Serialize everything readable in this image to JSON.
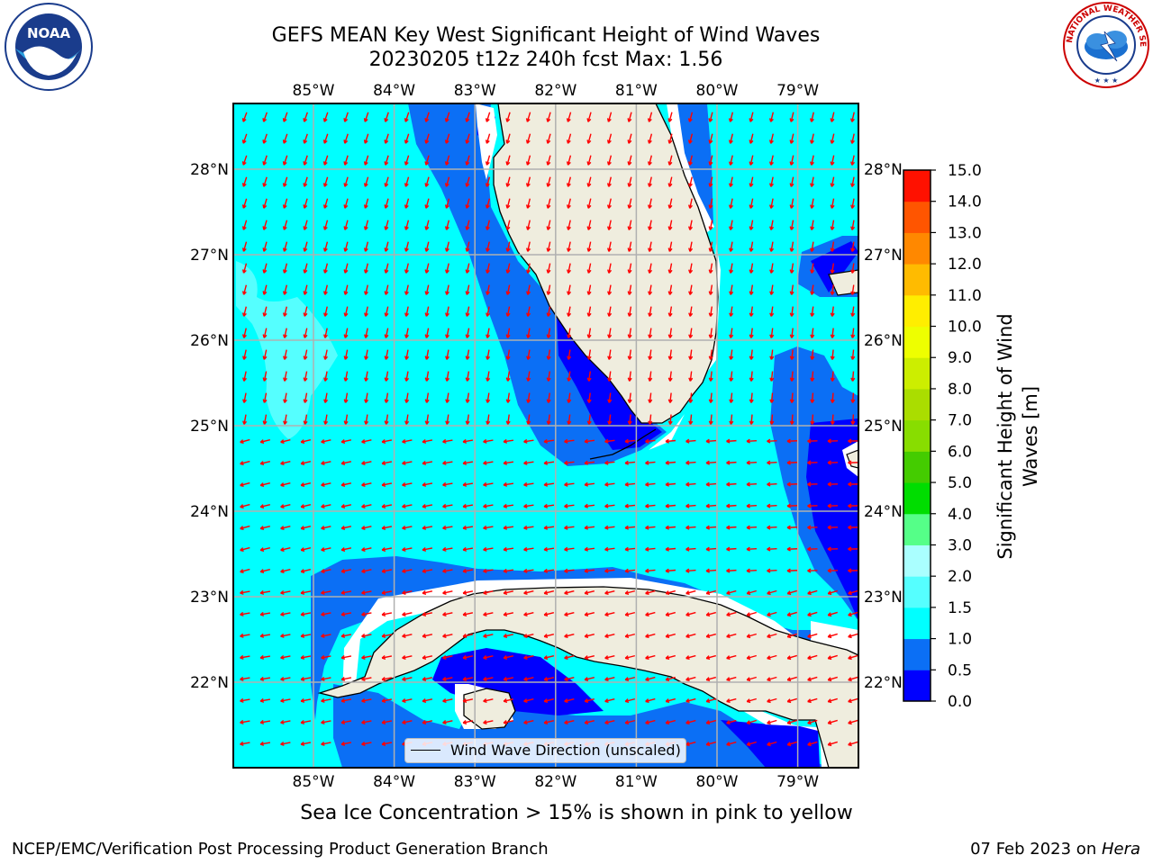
{
  "header": {
    "title_line1": "GEFS MEAN Key West Significant Height of Wind Waves",
    "title_line2": "20230205 t12z 240h fcst   Max: 1.56"
  },
  "logos": {
    "left": {
      "icon": "noaa-logo-icon",
      "text": "NOAA"
    },
    "right": {
      "icon": "nws-logo-icon",
      "text": "NATIONAL WEATHER SERVICE"
    }
  },
  "map": {
    "lon_ticks": [
      "85°W",
      "84°W",
      "83°W",
      "82°W",
      "81°W",
      "80°W",
      "79°W"
    ],
    "lat_ticks": [
      "28°N",
      "27°N",
      "26°N",
      "25°N",
      "24°N",
      "23°N",
      "22°N"
    ],
    "legend_label": "Wind Wave Direction (unscaled)",
    "arrow_color": "#ff0000",
    "land_color": "#efedde",
    "grid_color": "#b0b0b0"
  },
  "colorbar": {
    "title": "Significant Height of Wind Waves [m]",
    "title_line1": "Significant Height of Wind",
    "title_line2": "Waves [m]",
    "tick_labels": [
      "0.0",
      "0.5",
      "1.0",
      "1.5",
      "2.0",
      "3.0",
      "4.0",
      "5.0",
      "6.0",
      "7.0",
      "8.0",
      "9.0",
      "10.0",
      "11.0",
      "12.0",
      "13.0",
      "14.0",
      "15.0"
    ],
    "colors": [
      "#0000ff",
      "#0b6ff5",
      "#00ffff",
      "#55ffff",
      "#aaffff",
      "#55ff88",
      "#00dd00",
      "#44cc00",
      "#88dd00",
      "#aadd00",
      "#ccee00",
      "#eeff00",
      "#ffee00",
      "#ffbb00",
      "#ff8800",
      "#ff5500",
      "#ff1100"
    ]
  },
  "note": "Sea Ice Concentration > 15% is shown in pink to yellow",
  "footer": {
    "left": "NCEP/EMC/Verification Post Processing Product Generation Branch",
    "right_prefix": "07 Feb 2023 on ",
    "right_host": "Hera"
  }
}
